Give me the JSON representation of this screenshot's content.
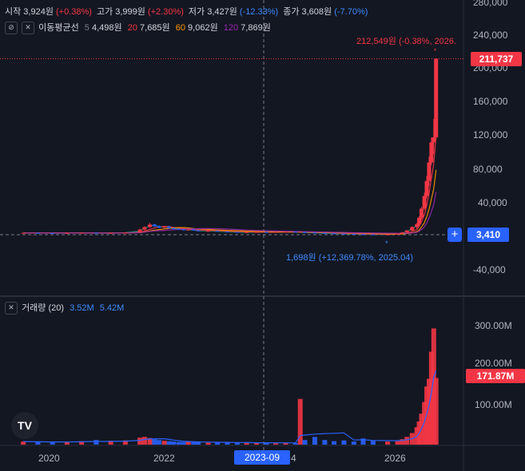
{
  "legend": {
    "ohlc": [
      {
        "label": "시작",
        "value": "3,924원",
        "change": "(+0.38%)",
        "dir": "up"
      },
      {
        "label": "고가",
        "value": "3,999원",
        "change": "(+2.30%)",
        "dir": "up"
      },
      {
        "label": "저가",
        "value": "3,427원",
        "change": "(-12.33%)",
        "dir": "dn"
      },
      {
        "label": "종가",
        "value": "3,608원",
        "change": "(-7.70%)",
        "dir": "dn"
      }
    ],
    "ma_title": "이동평균선",
    "ma": [
      {
        "period": "5",
        "value": "4,498원"
      },
      {
        "period": "20",
        "value": "7,685원"
      },
      {
        "period": "60",
        "value": "9,062원"
      },
      {
        "period": "120",
        "value": "7,869원"
      }
    ],
    "volume_title": "거래량 (20)",
    "volume_values": [
      "3.52M",
      "5.42M"
    ]
  },
  "price_axis": [
    "280,000",
    "240,000",
    "200,000",
    "160,000",
    "120,000",
    "80,000",
    "40,000",
    "-40,000"
  ],
  "volume_axis": [
    "300.00M",
    "200.00M",
    "100.00M"
  ],
  "time_axis": [
    "2020",
    "2022",
    "2023-09",
    "4",
    "2026"
  ],
  "tags": {
    "last_price": "211,737",
    "crosshair_price": "3,410",
    "volume_last": "171.87M",
    "crosshair_time": "2023-09"
  },
  "annotations": {
    "high": "212,549원 (-0.38%, 2026.",
    "low": "1,698원 (+12,369.78%, 2025.04)"
  },
  "logo_text": "TV",
  "colors": {
    "background": "#131722",
    "up": "#f23645",
    "down": "#2962ff",
    "grid": "#2a2e39",
    "ma5": "#089981",
    "ma20": "#f23645",
    "ma60": "#ff9800",
    "ma120": "#9c27b0",
    "volume_ma": "#2962ff"
  },
  "chart_data": {
    "type": "candlestick",
    "interval": "monthly",
    "y_scale": {
      "min": -40000,
      "max": 280000
    },
    "x_ticks": [
      "2020",
      "2022",
      "2024",
      "2026"
    ],
    "ohlc": [
      [
        2019.0,
        4000,
        4300,
        3700,
        4100
      ],
      [
        2019.25,
        4100,
        4200,
        3600,
        3800
      ],
      [
        2019.5,
        3800,
        4000,
        3500,
        3700
      ],
      [
        2019.75,
        3700,
        4100,
        3500,
        3900
      ],
      [
        2020.0,
        3900,
        4400,
        3600,
        4200
      ],
      [
        2020.25,
        4200,
        4600,
        3200,
        3500
      ],
      [
        2020.5,
        3500,
        4200,
        3300,
        4000
      ],
      [
        2020.75,
        4000,
        4800,
        3800,
        4600
      ],
      [
        2021.0,
        4600,
        9000,
        4400,
        8000
      ],
      [
        2021.08,
        8000,
        12000,
        7000,
        11000
      ],
      [
        2021.17,
        11000,
        16000,
        10000,
        14000
      ],
      [
        2021.25,
        14000,
        15000,
        11000,
        12000
      ],
      [
        2021.33,
        12000,
        13000,
        9500,
        10500
      ],
      [
        2021.42,
        10500,
        12000,
        9000,
        11500
      ],
      [
        2021.5,
        11500,
        12500,
        9000,
        9800
      ],
      [
        2021.58,
        9800,
        10500,
        8000,
        8800
      ],
      [
        2021.67,
        8800,
        9500,
        7500,
        8200
      ],
      [
        2021.75,
        8200,
        9000,
        7000,
        7600
      ],
      [
        2021.83,
        7600,
        8500,
        6800,
        8000
      ],
      [
        2021.92,
        8000,
        8800,
        6500,
        7000
      ],
      [
        2022.0,
        7000,
        7800,
        5800,
        6200
      ],
      [
        2022.17,
        6200,
        7000,
        5500,
        6500
      ],
      [
        2022.33,
        6500,
        7200,
        5200,
        5600
      ],
      [
        2022.5,
        5600,
        6200,
        4800,
        5200
      ],
      [
        2022.67,
        5200,
        5800,
        4200,
        4500
      ],
      [
        2022.83,
        4500,
        5200,
        4000,
        4900
      ],
      [
        2023.0,
        4900,
        5600,
        4500,
        5100
      ],
      [
        2023.17,
        5100,
        5800,
        4600,
        4800
      ],
      [
        2023.33,
        4800,
        5500,
        4300,
        5200
      ],
      [
        2023.5,
        5200,
        6000,
        4700,
        5400
      ],
      [
        2023.67,
        5400,
        6200,
        4800,
        5000
      ],
      [
        2023.83,
        5000,
        5600,
        4200,
        4400
      ],
      [
        2024.0,
        4400,
        5000,
        3600,
        3900
      ],
      [
        2024.17,
        3900,
        4400,
        3200,
        3500
      ],
      [
        2024.33,
        3500,
        4000,
        2800,
        3100
      ],
      [
        2024.5,
        3100,
        3600,
        2600,
        2900
      ],
      [
        2024.67,
        2900,
        3300,
        2300,
        2500
      ],
      [
        2024.83,
        2500,
        2900,
        2100,
        2300
      ],
      [
        2025.0,
        2300,
        2600,
        1900,
        2000
      ],
      [
        2025.25,
        2000,
        2400,
        1698,
        2200
      ],
      [
        2025.42,
        2200,
        3500,
        2100,
        3200
      ],
      [
        2025.5,
        3200,
        5000,
        3000,
        4600
      ],
      [
        2025.58,
        4600,
        7500,
        4400,
        7000
      ],
      [
        2025.67,
        7000,
        12000,
        6500,
        11000
      ],
      [
        2025.75,
        11000,
        16000,
        9000,
        14500
      ],
      [
        2025.79,
        14500,
        24000,
        13000,
        22000
      ],
      [
        2025.83,
        22000,
        35000,
        20000,
        33000
      ],
      [
        2025.88,
        33000,
        52000,
        31000,
        48000
      ],
      [
        2025.92,
        48000,
        72000,
        45000,
        66000
      ],
      [
        2025.96,
        66000,
        95000,
        60000,
        88000
      ],
      [
        2026.0,
        88000,
        118000,
        85000,
        112000
      ],
      [
        2026.04,
        112000,
        140000,
        98000,
        118000
      ],
      [
        2026.08,
        118000,
        212549,
        115000,
        211737
      ]
    ],
    "volume": [
      [
        2019.0,
        8
      ],
      [
        2019.25,
        7
      ],
      [
        2019.5,
        6
      ],
      [
        2019.75,
        7
      ],
      [
        2020.0,
        9
      ],
      [
        2020.25,
        12
      ],
      [
        2020.5,
        10
      ],
      [
        2020.75,
        11
      ],
      [
        2021.0,
        18
      ],
      [
        2021.08,
        20
      ],
      [
        2021.17,
        17
      ],
      [
        2021.25,
        14
      ],
      [
        2021.33,
        12
      ],
      [
        2021.42,
        10
      ],
      [
        2021.5,
        9
      ],
      [
        2021.58,
        8
      ],
      [
        2021.67,
        7
      ],
      [
        2021.75,
        7
      ],
      [
        2021.83,
        8
      ],
      [
        2021.92,
        6
      ],
      [
        2022.0,
        6
      ],
      [
        2022.17,
        5
      ],
      [
        2022.33,
        5
      ],
      [
        2022.5,
        6
      ],
      [
        2022.67,
        5
      ],
      [
        2022.83,
        5
      ],
      [
        2023.0,
        4
      ],
      [
        2023.17,
        5
      ],
      [
        2023.33,
        4
      ],
      [
        2023.5,
        5
      ],
      [
        2023.67,
        4
      ],
      [
        2023.75,
        118
      ],
      [
        2023.83,
        12
      ],
      [
        2024.0,
        20
      ],
      [
        2024.17,
        12
      ],
      [
        2024.33,
        9
      ],
      [
        2024.5,
        11
      ],
      [
        2024.67,
        8
      ],
      [
        2024.83,
        16
      ],
      [
        2025.0,
        10
      ],
      [
        2025.25,
        8
      ],
      [
        2025.42,
        9
      ],
      [
        2025.5,
        14
      ],
      [
        2025.58,
        20
      ],
      [
        2025.67,
        30
      ],
      [
        2025.75,
        45
      ],
      [
        2025.79,
        60
      ],
      [
        2025.83,
        80
      ],
      [
        2025.88,
        110
      ],
      [
        2025.92,
        150
      ],
      [
        2025.96,
        170
      ],
      [
        2026.0,
        240
      ],
      [
        2026.04,
        300
      ],
      [
        2026.08,
        172
      ]
    ],
    "volume_scale_max_millions": 340,
    "last_price": 211737,
    "crosshair_price": 3410,
    "high": 212549,
    "low": 1698
  }
}
